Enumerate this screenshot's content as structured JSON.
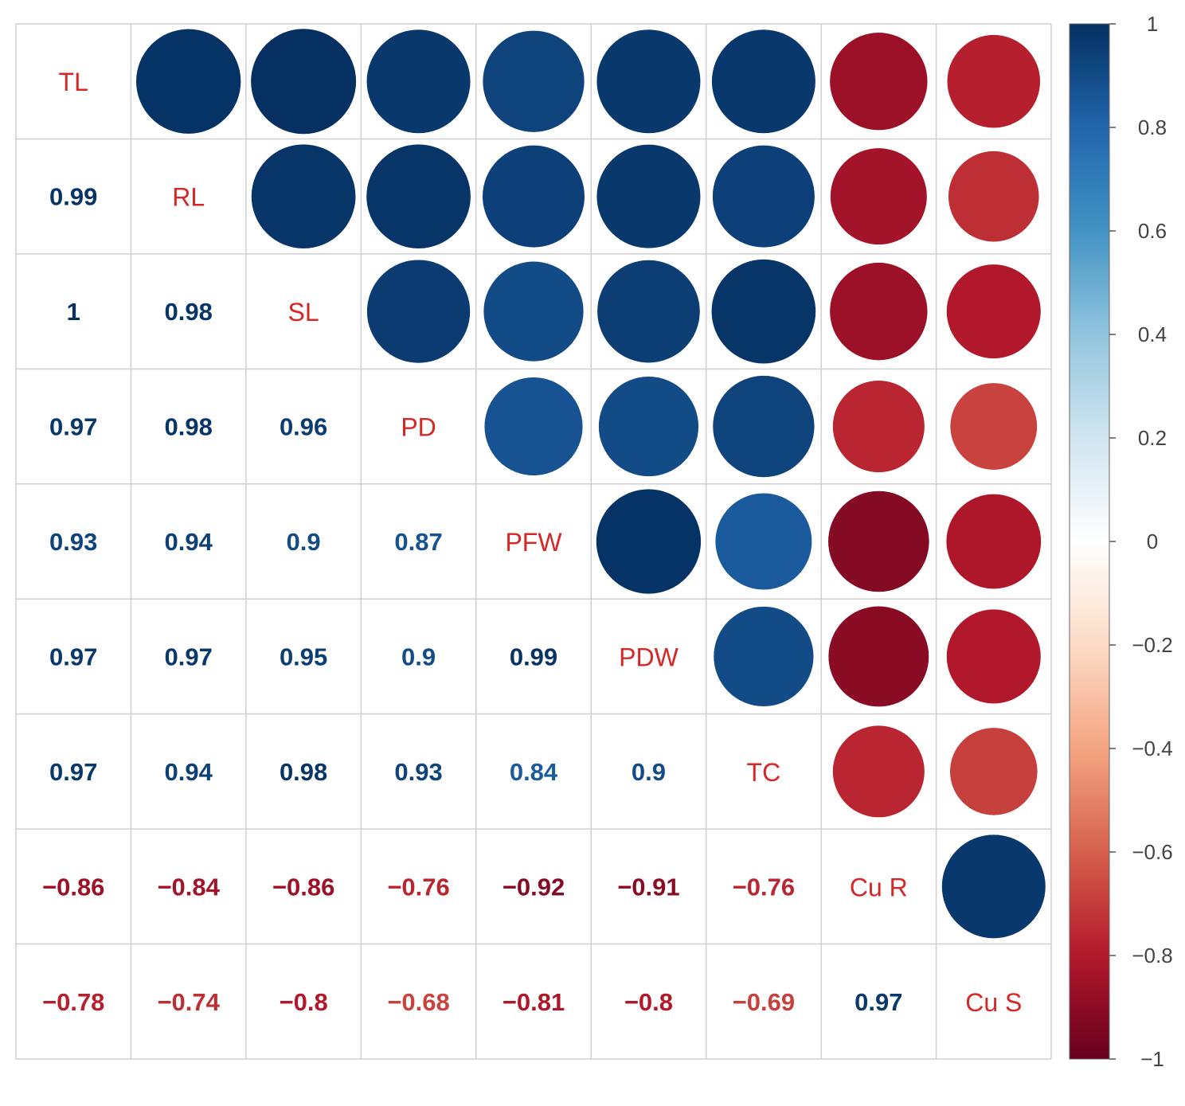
{
  "chart_data": {
    "type": "heatmap",
    "variables": [
      "TL",
      "RL",
      "SL",
      "PD",
      "PFW",
      "PDW",
      "TC",
      "Cu R",
      "Cu S"
    ],
    "lower_triangle": "numbers",
    "upper_triangle": "circles",
    "matrix": [
      [
        1,
        0.99,
        1,
        0.97,
        0.93,
        0.97,
        0.97,
        -0.86,
        -0.78
      ],
      [
        0.99,
        1,
        0.98,
        0.98,
        0.94,
        0.97,
        0.94,
        -0.84,
        -0.74
      ],
      [
        1,
        0.98,
        1,
        0.96,
        0.9,
        0.95,
        0.98,
        -0.86,
        -0.8
      ],
      [
        0.97,
        0.98,
        0.96,
        1,
        0.87,
        0.9,
        0.93,
        -0.76,
        -0.68
      ],
      [
        0.93,
        0.94,
        0.9,
        0.87,
        1,
        0.99,
        0.84,
        -0.92,
        -0.81
      ],
      [
        0.97,
        0.97,
        0.95,
        0.9,
        0.99,
        1,
        0.9,
        -0.91,
        -0.8
      ],
      [
        0.97,
        0.94,
        0.98,
        0.93,
        0.84,
        0.9,
        1,
        -0.76,
        -0.69
      ],
      [
        -0.86,
        -0.84,
        -0.86,
        -0.76,
        -0.92,
        -0.91,
        -0.76,
        1,
        0.97
      ],
      [
        -0.78,
        -0.74,
        -0.8,
        -0.68,
        -0.81,
        -0.8,
        -0.69,
        0.97,
        1
      ]
    ],
    "lower_labels": [
      [
        "0.99"
      ],
      [
        "1",
        "0.98"
      ],
      [
        "0.97",
        "0.98",
        "0.96"
      ],
      [
        "0.93",
        "0.94",
        "0.9",
        "0.87"
      ],
      [
        "0.97",
        "0.97",
        "0.95",
        "0.9",
        "0.99"
      ],
      [
        "0.97",
        "0.94",
        "0.98",
        "0.93",
        "0.84",
        "0.9"
      ],
      [
        "−0.86",
        "−0.84",
        "−0.86",
        "−0.76",
        "−0.92",
        "−0.91",
        "−0.76"
      ],
      [
        "−0.78",
        "−0.74",
        "−0.8",
        "−0.68",
        "−0.81",
        "−0.8",
        "−0.69",
        "0.97"
      ]
    ],
    "colorbar": {
      "range": [
        -1,
        1
      ],
      "ticks": [
        1,
        0.8,
        0.6,
        0.4,
        0.2,
        0,
        -0.2,
        -0.4,
        -0.6,
        -0.8,
        -1
      ],
      "tick_labels": [
        "1",
        "0.8",
        "0.6",
        "0.4",
        "0.2",
        "0",
        "−0.2",
        "−0.4",
        "−0.6",
        "−0.8",
        "−1"
      ],
      "palette": [
        "#67001f",
        "#b2182b",
        "#d6604d",
        "#f4a582",
        "#fddbc7",
        "#ffffff",
        "#d1e5f0",
        "#92c5de",
        "#4393c3",
        "#2166ac",
        "#053061"
      ]
    },
    "diagonal_label_color": "#d62728",
    "grid": true
  }
}
